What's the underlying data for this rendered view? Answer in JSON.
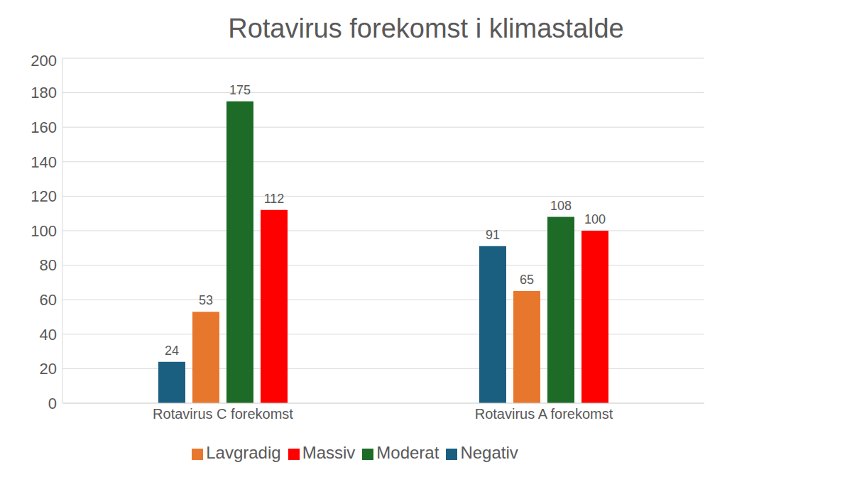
{
  "chart_data": {
    "type": "bar",
    "title": "Rotavirus forekomst i klimastalde",
    "categories": [
      "Rotavirus C forekomst",
      "Rotavirus A forekomst"
    ],
    "series": [
      {
        "name": "Negativ",
        "color": "#1a5e80",
        "values": [
          24,
          91
        ]
      },
      {
        "name": "Lavgradig",
        "color": "#e8772e",
        "values": [
          53,
          65
        ]
      },
      {
        "name": "Moderat",
        "color": "#1d6b26",
        "values": [
          175,
          108
        ]
      },
      {
        "name": "Massiv",
        "color": "#ff0000",
        "values": [
          112,
          100
        ]
      }
    ],
    "ylim": [
      0,
      200
    ],
    "yticks": [
      0,
      20,
      40,
      60,
      80,
      100,
      120,
      140,
      160,
      180,
      200
    ],
    "grid": true,
    "legend": "bottom",
    "data_labels": true
  }
}
